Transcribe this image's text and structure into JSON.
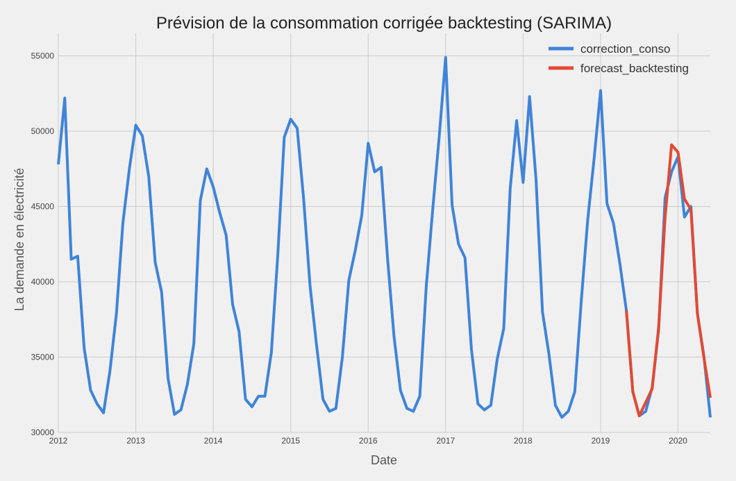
{
  "chart_data": {
    "type": "line",
    "title": "Prévision de la consommation corrigée backtesting (SARIMA)",
    "xlabel": "Date",
    "ylabel": "La demande en électricité",
    "xlim": [
      "2012-01",
      "2020-06"
    ],
    "ylim": [
      30000,
      56500
    ],
    "x_ticks": [
      "2012",
      "2013",
      "2014",
      "2015",
      "2016",
      "2017",
      "2018",
      "2019",
      "2020"
    ],
    "y_ticks": [
      30000,
      35000,
      40000,
      45000,
      50000,
      55000
    ],
    "grid": true,
    "legend_position": "top-right",
    "colors": {
      "background": "#f0f0f0",
      "grid": "#cbcbcb"
    },
    "series": [
      {
        "name": "correction_conso",
        "color": "#3f84d8",
        "x_start": "2012-01",
        "x_step": "month",
        "values": [
          47800,
          52200,
          41500,
          41700,
          35600,
          32800,
          31900,
          31300,
          34100,
          37900,
          43900,
          47500,
          50400,
          49700,
          47000,
          41300,
          39300,
          33600,
          31200,
          31500,
          33200,
          35900,
          45400,
          47500,
          46300,
          44600,
          43100,
          38500,
          36700,
          32200,
          31700,
          32400,
          32400,
          35300,
          41800,
          49600,
          50800,
          50200,
          45500,
          39700,
          35800,
          32200,
          31400,
          31600,
          35000,
          40100,
          42100,
          44400,
          49200,
          47300,
          47600,
          41600,
          36400,
          32800,
          31600,
          31400,
          32400,
          39700,
          44800,
          49600,
          54900,
          45100,
          42500,
          41600,
          35500,
          31900,
          31500,
          31800,
          34900,
          36900,
          46200,
          50700,
          46600,
          52300,
          46800,
          38000,
          35200,
          31800,
          31000,
          31400,
          32700,
          38700,
          44100,
          48200,
          52700,
          45200,
          43900,
          41200,
          38100,
          32700,
          31100,
          31400,
          33000,
          36800,
          45600,
          47300,
          48300,
          44300,
          45000,
          37900,
          35100,
          31000
        ]
      },
      {
        "name": "forecast_backtesting",
        "color": "#e24a33",
        "x_start": "2019-05",
        "x_step": "month",
        "values": [
          38100,
          32700,
          31100,
          32000,
          32900,
          37000,
          44300,
          49100,
          48600,
          45500,
          44800,
          37900,
          35000,
          32300
        ]
      }
    ]
  }
}
